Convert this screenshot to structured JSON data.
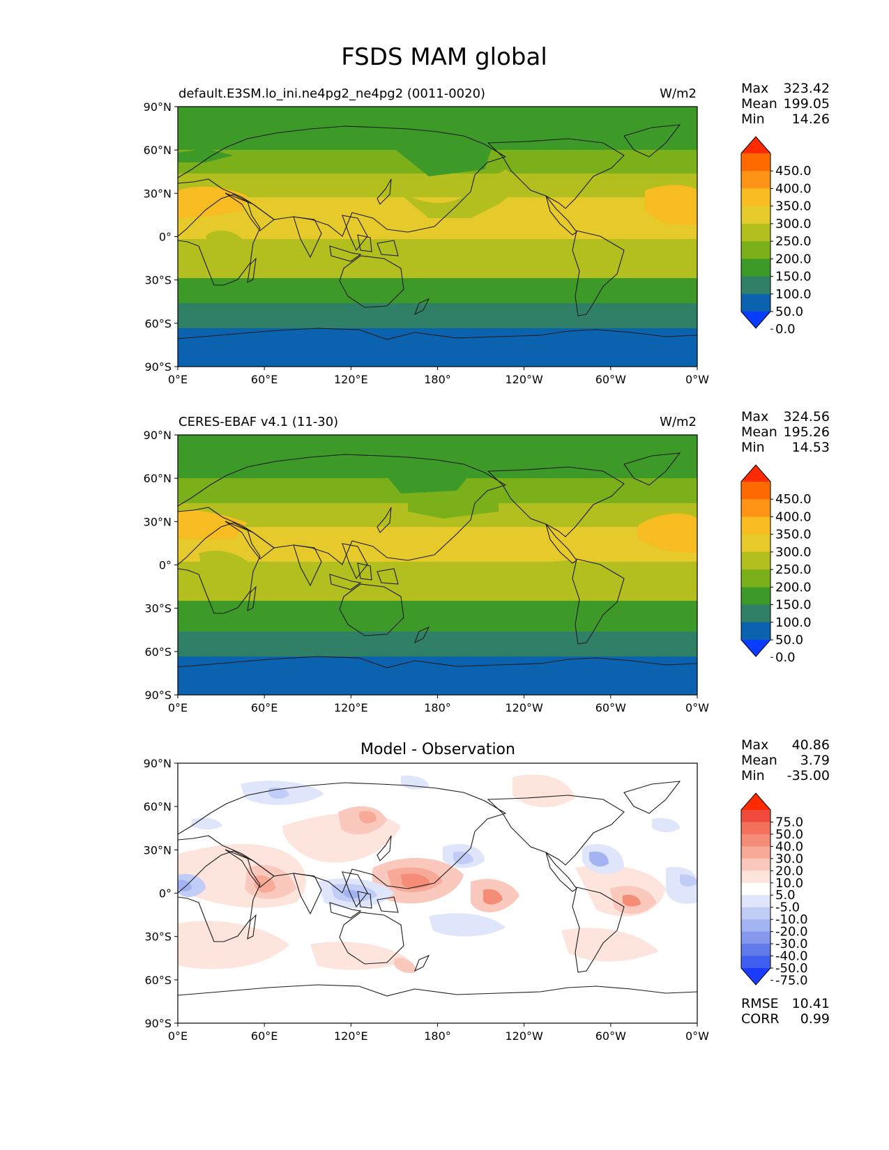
{
  "figure": {
    "title": "FSDS MAM global"
  },
  "axes": {
    "lat_ticks": [
      "90°N",
      "60°N",
      "30°N",
      "0°",
      "30°S",
      "60°S",
      "90°S"
    ],
    "lon_ticks": [
      "0°E",
      "60°E",
      "120°E",
      "180°",
      "120°W",
      "60°W",
      "0°W"
    ]
  },
  "panels": [
    {
      "id": "model",
      "left_title": "default.E3SM.lo_ini.ne4pg2_ne4pg2 (0011-0020)",
      "center_title": "",
      "units": "W/m2",
      "stats": [
        {
          "label": "Max",
          "value": "323.42"
        },
        {
          "label": "Mean",
          "value": "199.05"
        },
        {
          "label": "Min",
          "value": "14.26"
        }
      ],
      "colorbar": {
        "labels": [
          "450.0",
          "400.0",
          "350.0",
          "300.0",
          "250.0",
          "200.0",
          "150.0",
          "100.0",
          "50.0",
          "0.0"
        ],
        "colors": [
          "#ff2a00",
          "#ff6a00",
          "#ff9416",
          "#f7bc22",
          "#e6c92a",
          "#b2bf1e",
          "#7cb01a",
          "#3d9a28",
          "#2f8066",
          "#0b63b0",
          "#0a3cff"
        ]
      },
      "extra_stats": []
    },
    {
      "id": "obs",
      "left_title": "CERES-EBAF v4.1 (11-30)",
      "center_title": "",
      "units": "W/m2",
      "stats": [
        {
          "label": "Max",
          "value": "324.56"
        },
        {
          "label": "Mean",
          "value": "195.26"
        },
        {
          "label": "Min",
          "value": "14.53"
        }
      ],
      "colorbar": {
        "labels": [
          "450.0",
          "400.0",
          "350.0",
          "300.0",
          "250.0",
          "200.0",
          "150.0",
          "100.0",
          "50.0",
          "0.0"
        ],
        "colors": [
          "#ff2a00",
          "#ff6a00",
          "#ff9416",
          "#f7bc22",
          "#e6c92a",
          "#b2bf1e",
          "#7cb01a",
          "#3d9a28",
          "#2f8066",
          "#0b63b0",
          "#0a3cff"
        ]
      },
      "extra_stats": []
    },
    {
      "id": "diff",
      "left_title": "",
      "center_title": "Model - Observation",
      "units": "",
      "stats": [
        {
          "label": "Max",
          "value": "40.86"
        },
        {
          "label": "Mean",
          "value": "3.79"
        },
        {
          "label": "Min",
          "value": "-35.00"
        }
      ],
      "colorbar": {
        "labels": [
          "75.0",
          "50.0",
          "40.0",
          "30.0",
          "20.0",
          "10.0",
          "5.0",
          "-5.0",
          "-10.0",
          "-20.0",
          "-30.0",
          "-40.0",
          "-50.0",
          "-75.0"
        ],
        "colors": [
          "#ff2a00",
          "#f04a3c",
          "#f2705c",
          "#f48c78",
          "#f7aa98",
          "#fac8bc",
          "#fde4dd",
          "#ffffff",
          "#dfe5fb",
          "#c2cdf7",
          "#a3b3f2",
          "#8598ee",
          "#627bea",
          "#3f5ff0",
          "#1a3cff"
        ]
      },
      "extra_stats": [
        {
          "label": "RMSE",
          "value": "10.41"
        },
        {
          "label": "CORR",
          "value": "0.99"
        }
      ]
    }
  ]
}
